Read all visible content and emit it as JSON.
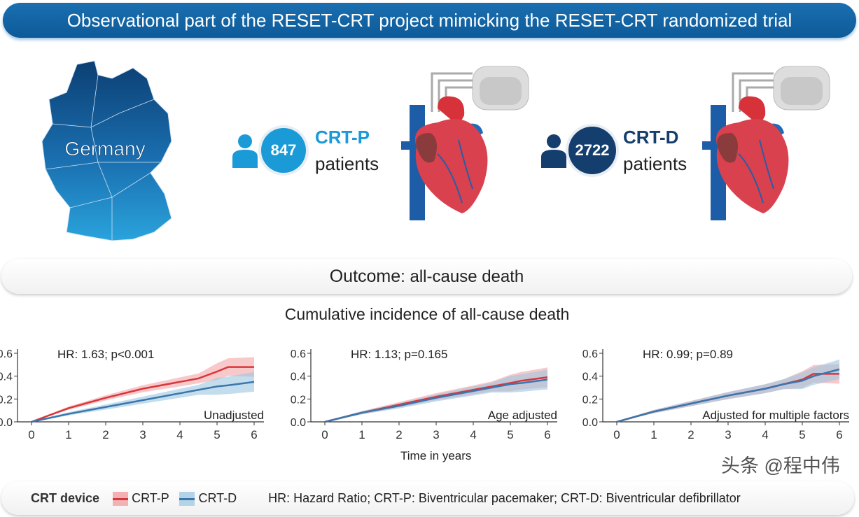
{
  "header": {
    "title": "Observational part of the RESET-CRT project mimicking the RESET-CRT randomized trial"
  },
  "map": {
    "label": "Germany"
  },
  "groups": [
    {
      "count": "847",
      "name": "CRT-P",
      "unit": "patients",
      "color": "#1a9ad6"
    },
    {
      "count": "2722",
      "name": "CRT-D",
      "unit": "patients",
      "color": "#143e6e"
    }
  ],
  "outcome": {
    "label": "Outcome",
    "value": ": all-cause death"
  },
  "charts_title": "Cumulative incidence of all-cause death",
  "xlabel": "Time in years",
  "legend": {
    "title": "CRT device",
    "items": [
      {
        "name": "CRT-P",
        "color": "#d9363b"
      },
      {
        "name": "CRT-D",
        "color": "#3a76ad"
      }
    ],
    "note": "HR: Hazard Ratio; CRT-P: Biventricular pacemaker; CRT-D: Biventricular defibrillator"
  },
  "watermark": "头条 @程中伟",
  "chart_data": [
    {
      "type": "line",
      "annotation": "HR: 1.63; p<0.001",
      "label": "Unadjusted",
      "xlim": [
        0,
        6
      ],
      "ylim": [
        0,
        0.6
      ],
      "xticks": [
        "0",
        "1",
        "2",
        "3",
        "4",
        "5",
        "6"
      ],
      "yticks": [
        "0.0",
        "0.2",
        "0.4",
        "0.6"
      ],
      "x": [
        0,
        1,
        2,
        3,
        4,
        4.5,
        5,
        5.3,
        6
      ],
      "series": [
        {
          "name": "CRT-P",
          "values": [
            0,
            0.12,
            0.21,
            0.29,
            0.35,
            0.38,
            0.44,
            0.48,
            0.48
          ]
        },
        {
          "name": "CRT-D",
          "values": [
            0,
            0.07,
            0.13,
            0.19,
            0.25,
            0.28,
            0.31,
            0.32,
            0.35
          ]
        }
      ]
    },
    {
      "type": "line",
      "annotation": "HR: 1.13; p=0.165",
      "label": "Age adjusted",
      "xlim": [
        0,
        6
      ],
      "ylim": [
        0,
        0.6
      ],
      "xticks": [
        "0",
        "1",
        "2",
        "3",
        "4",
        "5",
        "6"
      ],
      "yticks": [
        "0.0",
        "0.2",
        "0.4",
        "0.6"
      ],
      "x": [
        0,
        1,
        2,
        3,
        4,
        4.5,
        5,
        5.3,
        6
      ],
      "series": [
        {
          "name": "CRT-P",
          "values": [
            0,
            0.08,
            0.15,
            0.22,
            0.28,
            0.31,
            0.34,
            0.36,
            0.39
          ]
        },
        {
          "name": "CRT-D",
          "values": [
            0,
            0.08,
            0.14,
            0.21,
            0.27,
            0.3,
            0.33,
            0.34,
            0.37
          ]
        }
      ]
    },
    {
      "type": "line",
      "annotation": "HR: 0.99; p=0.89",
      "label": "Adjusted for multiple factors",
      "xlim": [
        0,
        6
      ],
      "ylim": [
        0,
        0.6
      ],
      "xticks": [
        "0",
        "1",
        "2",
        "3",
        "4",
        "5",
        "6"
      ],
      "yticks": [
        "0.0",
        "0.2",
        "0.4",
        "0.6"
      ],
      "x": [
        0,
        1,
        2,
        3,
        4,
        4.5,
        5,
        5.3,
        6
      ],
      "series": [
        {
          "name": "CRT-P",
          "values": [
            0,
            0.09,
            0.16,
            0.23,
            0.29,
            0.33,
            0.37,
            0.42,
            0.42
          ]
        },
        {
          "name": "CRT-D",
          "values": [
            0,
            0.09,
            0.16,
            0.23,
            0.29,
            0.33,
            0.36,
            0.4,
            0.46
          ]
        }
      ]
    }
  ]
}
